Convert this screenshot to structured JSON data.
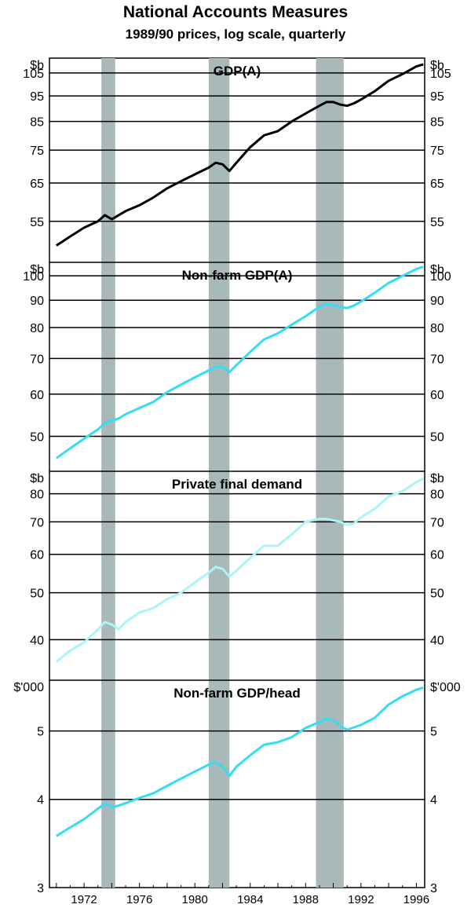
{
  "title": "National Accounts Measures",
  "subtitle": "1989/90 prices, log scale, quarterly",
  "chart_data": [
    {
      "type": "line",
      "title": "GDP(A)",
      "unit": "$b",
      "scale": "log",
      "color": "#000000",
      "ylim": [
        46,
        112
      ],
      "yticks": [
        55,
        65,
        75,
        85,
        95,
        105
      ],
      "x": [
        1970.0,
        1971.0,
        1972.0,
        1973.0,
        1973.5,
        1974.0,
        1974.5,
        1975.0,
        1976.0,
        1977.0,
        1978.0,
        1979.0,
        1980.0,
        1981.0,
        1981.5,
        1982.0,
        1982.5,
        1983.0,
        1984.0,
        1985.0,
        1986.0,
        1987.0,
        1988.0,
        1989.0,
        1989.5,
        1990.0,
        1990.5,
        1991.0,
        1991.5,
        1992.0,
        1993.0,
        1994.0,
        1995.0,
        1996.0,
        1996.5
      ],
      "values": [
        49.5,
        51.5,
        53.5,
        55.0,
        56.5,
        55.5,
        56.5,
        57.5,
        59.0,
        61.0,
        63.5,
        65.5,
        67.5,
        69.5,
        71.0,
        70.5,
        68.5,
        71.0,
        76.0,
        80.0,
        81.5,
        85.0,
        88.0,
        91.0,
        92.5,
        92.5,
        91.5,
        91.0,
        92.0,
        93.5,
        97.0,
        101.5,
        104.5,
        108.0,
        109.0
      ]
    },
    {
      "type": "line",
      "title": "Non-farm GDP(A)",
      "unit": "$b",
      "scale": "log",
      "color": "#33ddf2",
      "ylim": [
        43,
        106
      ],
      "yticks": [
        50,
        60,
        70,
        80,
        90,
        100
      ],
      "x": [
        1970.0,
        1971.0,
        1972.0,
        1973.0,
        1973.5,
        1974.0,
        1974.5,
        1975.0,
        1976.0,
        1977.0,
        1978.0,
        1979.0,
        1980.0,
        1981.0,
        1981.5,
        1982.0,
        1982.5,
        1983.0,
        1984.0,
        1985.0,
        1986.0,
        1987.0,
        1988.0,
        1989.0,
        1989.5,
        1990.0,
        1990.5,
        1991.0,
        1991.5,
        1992.0,
        1993.0,
        1994.0,
        1995.0,
        1996.0,
        1996.5
      ],
      "values": [
        45.5,
        47.5,
        49.5,
        51.5,
        53.0,
        53.5,
        54.0,
        55.0,
        56.5,
        58.0,
        60.5,
        62.5,
        64.5,
        66.5,
        67.5,
        67.5,
        66.0,
        68.0,
        72.0,
        76.0,
        78.0,
        81.0,
        84.0,
        87.5,
        88.5,
        88.0,
        87.5,
        87.0,
        88.0,
        89.5,
        93.0,
        97.0,
        100.0,
        103.0,
        104.0
      ]
    },
    {
      "type": "line",
      "title": "Private final demand",
      "unit": "$b",
      "scale": "log",
      "color": "#a8f6f8",
      "ylim": [
        33,
        89
      ],
      "yticks": [
        40,
        50,
        60,
        70,
        80
      ],
      "x": [
        1970.0,
        1971.0,
        1972.0,
        1973.0,
        1973.5,
        1974.0,
        1974.5,
        1975.0,
        1976.0,
        1977.0,
        1978.0,
        1979.0,
        1980.0,
        1981.0,
        1981.5,
        1982.0,
        1982.5,
        1983.0,
        1984.0,
        1985.0,
        1986.0,
        1987.0,
        1988.0,
        1989.0,
        1989.5,
        1990.0,
        1990.5,
        1991.0,
        1991.5,
        1992.0,
        1993.0,
        1994.0,
        1995.0,
        1996.0,
        1996.5
      ],
      "values": [
        36.0,
        38.0,
        39.5,
        42.0,
        43.5,
        43.0,
        42.0,
        43.5,
        45.5,
        46.5,
        48.5,
        50.0,
        52.5,
        55.0,
        56.5,
        56.0,
        54.0,
        55.5,
        59.0,
        62.5,
        62.5,
        66.0,
        70.0,
        71.0,
        71.0,
        70.5,
        70.0,
        69.0,
        69.5,
        71.5,
        74.5,
        79.0,
        81.0,
        84.5,
        86.0
      ]
    },
    {
      "type": "line",
      "title": "Non-farm GDP/head",
      "unit": "$'000",
      "scale": "log",
      "color": "#33ddf2",
      "ylim": [
        3,
        5.9
      ],
      "yticks": [
        3,
        4,
        5
      ],
      "x": [
        1970.0,
        1971.0,
        1972.0,
        1973.0,
        1973.5,
        1974.0,
        1974.5,
        1975.0,
        1976.0,
        1977.0,
        1978.0,
        1979.0,
        1980.0,
        1981.0,
        1981.5,
        1982.0,
        1982.5,
        1983.0,
        1984.0,
        1985.0,
        1986.0,
        1987.0,
        1988.0,
        1989.0,
        1989.5,
        1990.0,
        1990.5,
        1991.0,
        1991.5,
        1992.0,
        1993.0,
        1994.0,
        1995.0,
        1996.0,
        1996.5
      ],
      "values": [
        3.55,
        3.65,
        3.75,
        3.88,
        3.95,
        3.9,
        3.92,
        3.95,
        4.02,
        4.08,
        4.18,
        4.28,
        4.38,
        4.48,
        4.52,
        4.45,
        4.32,
        4.45,
        4.62,
        4.78,
        4.82,
        4.9,
        5.05,
        5.15,
        5.2,
        5.18,
        5.08,
        5.02,
        5.06,
        5.1,
        5.22,
        5.45,
        5.6,
        5.72,
        5.76
      ]
    }
  ],
  "x_axis": {
    "range": [
      1969.5,
      1996.6
    ],
    "tick_labels": [
      "1972",
      "1976",
      "1980",
      "1984",
      "1988",
      "1992",
      "1996"
    ]
  },
  "recession_bands": [
    [
      1973.25,
      1974.25
    ],
    [
      1981.0,
      1982.5
    ],
    [
      1988.75,
      1990.75
    ]
  ],
  "band_color": "#a9b9ba"
}
